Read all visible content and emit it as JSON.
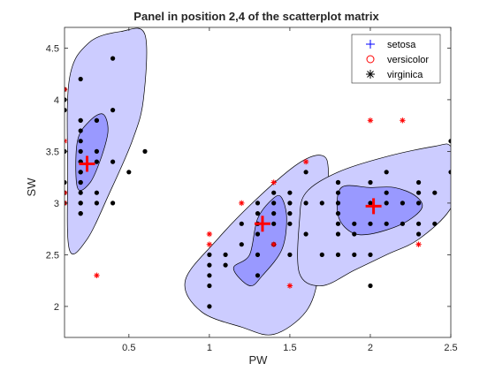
{
  "chart_data": {
    "type": "scatter",
    "title": "Panel in position 2,4 of the scatterplot matrix",
    "xlabel": "PW",
    "ylabel": "SW",
    "xlim": [
      0.1,
      2.5
    ],
    "ylim": [
      1.7,
      4.7
    ],
    "xticks": [
      0.5,
      1,
      1.5,
      2,
      2.5
    ],
    "xtick_labels": [
      "0.5",
      "1",
      "1.5",
      "2",
      "2.5"
    ],
    "yticks": [
      2,
      2.5,
      3,
      3.5,
      4,
      4.5
    ],
    "ytick_labels": [
      "2",
      "2.5",
      "3",
      "3.5",
      "4",
      "4.5"
    ],
    "grid": false,
    "legend_position": "top-right",
    "legend": [
      {
        "label": "setosa",
        "marker": "plus",
        "color": "#0000ff"
      },
      {
        "label": "versicolor",
        "marker": "circle",
        "color": "#ff0000"
      },
      {
        "label": "virginica",
        "marker": "asterisk",
        "color": "#000000"
      }
    ],
    "colors": {
      "region_outer": "#ccccff",
      "region_inner": "#9999ff",
      "point": "#000000",
      "outlier": "#ff0000",
      "centroid": "#ff0000"
    },
    "clusters": [
      {
        "name": "setosa",
        "centroid": [
          0.24,
          3.38
        ],
        "outer_region": [
          [
            0.13,
            2.55
          ],
          [
            0.12,
            3.3
          ],
          [
            0.13,
            4.2
          ],
          [
            0.25,
            4.55
          ],
          [
            0.45,
            4.66
          ],
          [
            0.6,
            4.63
          ],
          [
            0.59,
            4.0
          ],
          [
            0.52,
            3.6
          ],
          [
            0.38,
            3.1
          ],
          [
            0.24,
            2.65
          ]
        ],
        "inner_region": [
          [
            0.18,
            3.15
          ],
          [
            0.18,
            3.6
          ],
          [
            0.26,
            3.8
          ],
          [
            0.34,
            3.86
          ],
          [
            0.37,
            3.7
          ],
          [
            0.33,
            3.45
          ],
          [
            0.26,
            3.2
          ]
        ],
        "points": [
          [
            0.1,
            3.5
          ],
          [
            0.2,
            3.0
          ],
          [
            0.2,
            3.2
          ],
          [
            0.2,
            3.1
          ],
          [
            0.2,
            3.6
          ],
          [
            0.4,
            3.9
          ],
          [
            0.3,
            3.4
          ],
          [
            0.2,
            3.4
          ],
          [
            0.2,
            2.9
          ],
          [
            0.1,
            3.1
          ],
          [
            0.2,
            3.7
          ],
          [
            0.1,
            3.0
          ],
          [
            0.1,
            4.0
          ],
          [
            0.4,
            4.4
          ],
          [
            0.3,
            3.5
          ],
          [
            0.3,
            3.8
          ],
          [
            0.2,
            3.8
          ],
          [
            0.4,
            3.4
          ],
          [
            0.5,
            3.3
          ],
          [
            0.2,
            3.3
          ],
          [
            0.1,
            3.2
          ],
          [
            0.2,
            3.5
          ],
          [
            0.2,
            4.2
          ],
          [
            0.1,
            4.1
          ],
          [
            0.2,
            3.3
          ],
          [
            0.6,
            3.5
          ],
          [
            0.4,
            3.0
          ],
          [
            0.3,
            3.8
          ],
          [
            0.2,
            3.2
          ],
          [
            0.1,
            3.9
          ],
          [
            0.3,
            3.1
          ],
          [
            0.3,
            3.0
          ],
          [
            0.2,
            2.9
          ],
          [
            0.2,
            3.0
          ],
          [
            0.2,
            3.4
          ],
          [
            0.2,
            3.8
          ]
        ],
        "outliers": [
          [
            0.1,
            4.1
          ],
          [
            0.1,
            3.6
          ],
          [
            0.1,
            3.0
          ],
          [
            0.1,
            3.1
          ],
          [
            0.3,
            2.3
          ]
        ]
      },
      {
        "name": "versicolor",
        "centroid": [
          1.33,
          2.8
        ],
        "outer_region": [
          [
            1.4,
            1.73
          ],
          [
            1.2,
            1.8
          ],
          [
            0.95,
            1.95
          ],
          [
            0.85,
            2.25
          ],
          [
            1.05,
            2.65
          ],
          [
            1.3,
            3.05
          ],
          [
            1.55,
            3.38
          ],
          [
            1.7,
            3.46
          ],
          [
            1.74,
            3.3
          ],
          [
            1.72,
            2.8
          ],
          [
            1.68,
            2.3
          ],
          [
            1.6,
            1.95
          ]
        ],
        "inner_region": [
          [
            1.15,
            2.37
          ],
          [
            1.25,
            2.5
          ],
          [
            1.3,
            2.85
          ],
          [
            1.4,
            3.05
          ],
          [
            1.45,
            3.05
          ],
          [
            1.48,
            2.85
          ],
          [
            1.45,
            2.55
          ],
          [
            1.33,
            2.3
          ],
          [
            1.25,
            2.2
          ]
        ],
        "points": [
          [
            1.0,
            2.0
          ],
          [
            1.0,
            2.2
          ],
          [
            1.0,
            2.3
          ],
          [
            1.0,
            2.4
          ],
          [
            1.0,
            2.5
          ],
          [
            1.1,
            2.4
          ],
          [
            1.1,
            2.5
          ],
          [
            1.2,
            2.6
          ],
          [
            1.2,
            2.8
          ],
          [
            1.3,
            2.3
          ],
          [
            1.3,
            2.5
          ],
          [
            1.3,
            2.7
          ],
          [
            1.3,
            2.8
          ],
          [
            1.3,
            2.9
          ],
          [
            1.3,
            3.0
          ],
          [
            1.4,
            2.6
          ],
          [
            1.4,
            2.8
          ],
          [
            1.4,
            2.9
          ],
          [
            1.4,
            3.0
          ],
          [
            1.4,
            3.1
          ],
          [
            1.5,
            2.5
          ],
          [
            1.5,
            2.8
          ],
          [
            1.5,
            2.9
          ],
          [
            1.5,
            3.0
          ],
          [
            1.5,
            3.1
          ],
          [
            1.6,
            2.7
          ],
          [
            1.6,
            3.0
          ],
          [
            1.6,
            3.3
          ],
          [
            1.7,
            3.0
          ],
          [
            1.8,
            3.2
          ]
        ],
        "outliers": [
          [
            1.0,
            2.7
          ],
          [
            1.0,
            2.6
          ],
          [
            1.2,
            3.0
          ],
          [
            1.4,
            3.2
          ],
          [
            1.6,
            3.4
          ],
          [
            1.4,
            2.6
          ],
          [
            1.5,
            2.2
          ]
        ]
      },
      {
        "name": "virginica",
        "centroid": [
          2.02,
          2.97
        ],
        "outer_region": [
          [
            1.56,
            2.32
          ],
          [
            1.56,
            2.83
          ],
          [
            1.6,
            3.1
          ],
          [
            1.8,
            3.3
          ],
          [
            2.1,
            3.45
          ],
          [
            2.4,
            3.55
          ],
          [
            2.5,
            3.55
          ],
          [
            2.55,
            3.3
          ],
          [
            2.5,
            2.95
          ],
          [
            2.3,
            2.65
          ],
          [
            2.1,
            2.5
          ],
          [
            1.9,
            2.35
          ],
          [
            1.7,
            2.2
          ]
        ],
        "inner_region": [
          [
            1.8,
            2.88
          ],
          [
            1.82,
            3.15
          ],
          [
            2.0,
            3.15
          ],
          [
            2.15,
            3.15
          ],
          [
            2.28,
            3.07
          ],
          [
            2.32,
            2.95
          ],
          [
            2.2,
            2.8
          ],
          [
            2.0,
            2.7
          ],
          [
            1.88,
            2.72
          ]
        ],
        "points": [
          [
            1.7,
            2.5
          ],
          [
            1.8,
            2.5
          ],
          [
            1.8,
            2.7
          ],
          [
            1.8,
            2.8
          ],
          [
            1.8,
            2.9
          ],
          [
            1.8,
            3.0
          ],
          [
            1.8,
            3.1
          ],
          [
            1.8,
            3.2
          ],
          [
            1.9,
            2.5
          ],
          [
            1.9,
            2.7
          ],
          [
            1.9,
            2.8
          ],
          [
            2.0,
            2.5
          ],
          [
            2.0,
            2.8
          ],
          [
            2.0,
            3.0
          ],
          [
            2.0,
            3.2
          ],
          [
            2.1,
            2.8
          ],
          [
            2.1,
            3.0
          ],
          [
            2.1,
            3.1
          ],
          [
            2.2,
            2.8
          ],
          [
            2.2,
            3.0
          ],
          [
            2.3,
            2.7
          ],
          [
            2.3,
            2.8
          ],
          [
            2.3,
            3.0
          ],
          [
            2.3,
            3.1
          ],
          [
            2.3,
            3.2
          ],
          [
            2.4,
            2.8
          ],
          [
            2.4,
            3.1
          ],
          [
            2.5,
            3.3
          ],
          [
            2.5,
            3.6
          ],
          [
            2.1,
            3.3
          ],
          [
            2.0,
            2.2
          ]
        ],
        "outliers": [
          [
            2.0,
            3.8
          ],
          [
            2.2,
            3.8
          ],
          [
            2.3,
            2.6
          ]
        ]
      }
    ]
  }
}
